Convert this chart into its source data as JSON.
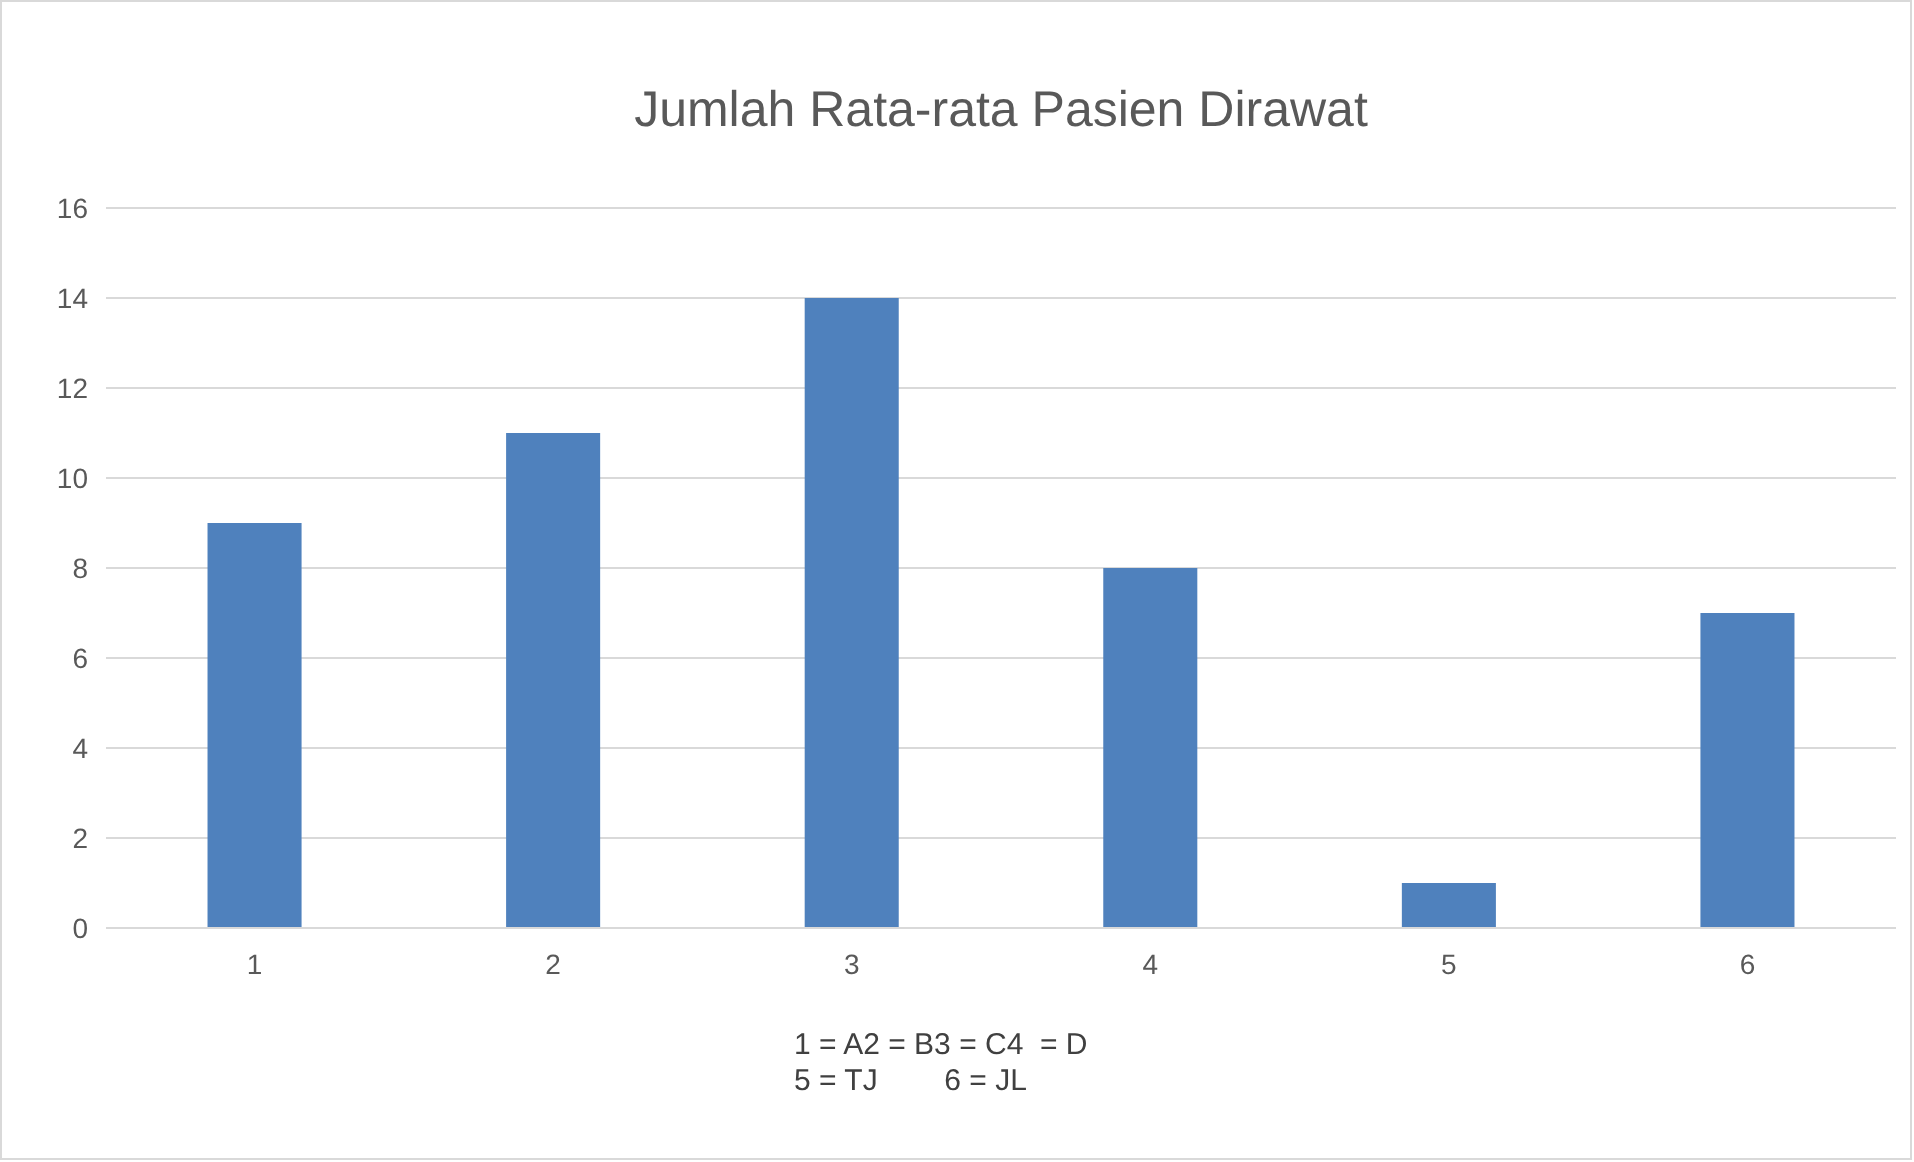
{
  "chart_data": {
    "type": "bar",
    "title": "Jumlah Rata-rata Pasien Dirawat",
    "categories": [
      "1",
      "2",
      "3",
      "4",
      "5",
      "6"
    ],
    "values": [
      9,
      11,
      14,
      8,
      1,
      7
    ],
    "color": "#4f81bd",
    "ylim": [
      0,
      16
    ],
    "yticks": [
      0,
      2,
      4,
      6,
      8,
      10,
      12,
      14,
      16
    ],
    "grid": "y",
    "annotations": [
      "1 = A2 = B3 = C4  = D",
      "5 = TJ        6 = JL"
    ]
  }
}
